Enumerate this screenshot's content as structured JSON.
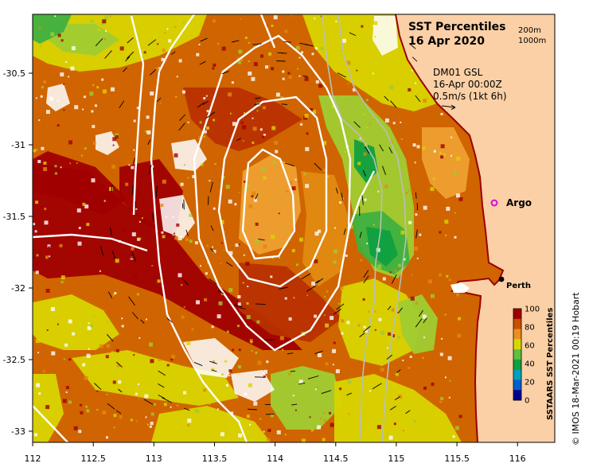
{
  "title": {
    "line1": "SST Percentiles",
    "line2": "16 Apr 2020"
  },
  "contour_legend": {
    "items": [
      "200m",
      "1000m"
    ]
  },
  "current_info": {
    "source": "DM01 GSL",
    "time": "16-Apr 00:00Z",
    "scale": "0.5m/s (1kt 6h)"
  },
  "markers": {
    "argo": "Argo",
    "perth": "Perth"
  },
  "x_axis": {
    "ticks": [
      "112",
      "112.5",
      "113",
      "113.5",
      "114",
      "114.5",
      "115",
      "115.5",
      "116"
    ]
  },
  "y_axis": {
    "ticks": [
      "-30.5",
      "-31",
      "-31.5",
      "-32",
      "-32.5",
      "-33"
    ]
  },
  "colorbar": {
    "label": "SSTAARS SST Percentiles",
    "ticks": [
      "100",
      "80",
      "60",
      "40",
      "20",
      "0"
    ],
    "colors": [
      "#a00000",
      "#c85000",
      "#e89020",
      "#d8d800",
      "#60c040",
      "#10a040",
      "#00a0c0",
      "#0060d0",
      "#000090"
    ]
  },
  "credit": "© IMOS 18-Mar-2021 00:19 Hobart",
  "palette": {
    "land": "#fbd0a6",
    "coast": "#9a0000",
    "contour": "#ffffff",
    "bathy": "#b8c0b8",
    "argo_marker": "#e000e0"
  }
}
